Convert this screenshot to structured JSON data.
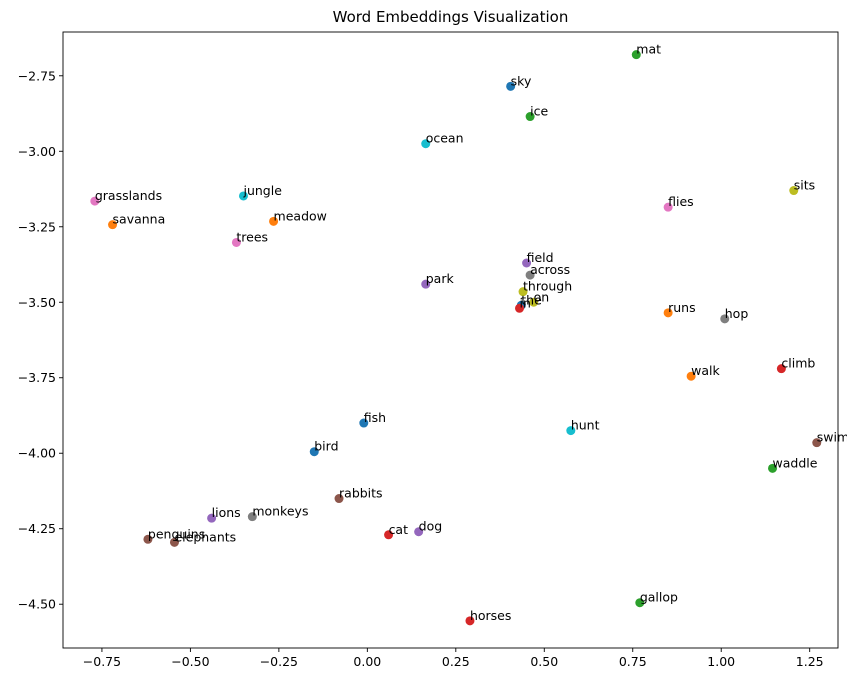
{
  "chart_data": {
    "type": "scatter",
    "title": "Word Embeddings Visualization",
    "xlabel": "",
    "ylabel": "",
    "xlim": [
      -0.86,
      1.33
    ],
    "ylim": [
      -4.645,
      -2.605
    ],
    "xticks": [
      -0.75,
      -0.5,
      -0.25,
      0.0,
      0.25,
      0.5,
      0.75,
      1.0,
      1.25
    ],
    "xtick_labels": [
      "−0.75",
      "−0.50",
      "−0.25",
      "0.00",
      "0.25",
      "0.50",
      "0.75",
      "1.00",
      "1.25"
    ],
    "yticks": [
      -2.75,
      -3.0,
      -3.25,
      -3.5,
      -3.75,
      -4.0,
      -4.25,
      -4.5
    ],
    "ytick_labels": [
      "−2.75",
      "−3.00",
      "−3.25",
      "−3.50",
      "−3.75",
      "−4.00",
      "−4.25",
      "−4.50"
    ],
    "grid": false,
    "points": [
      {
        "word": "mat",
        "x": 0.76,
        "y": -2.68,
        "color": "#2ca02c"
      },
      {
        "word": "sky",
        "x": 0.405,
        "y": -2.785,
        "color": "#1f77b4"
      },
      {
        "word": "ice",
        "x": 0.46,
        "y": -2.885,
        "color": "#2ca02c"
      },
      {
        "word": "ocean",
        "x": 0.165,
        "y": -2.975,
        "color": "#17becf"
      },
      {
        "word": "sits",
        "x": 1.205,
        "y": -3.13,
        "color": "#bcbd22"
      },
      {
        "word": "grasslands",
        "x": -0.77,
        "y": -3.165,
        "color": "#e377c2"
      },
      {
        "word": "jungle",
        "x": -0.35,
        "y": -3.148,
        "color": "#17becf"
      },
      {
        "word": "flies",
        "x": 0.85,
        "y": -3.185,
        "color": "#e377c2"
      },
      {
        "word": "savanna",
        "x": -0.72,
        "y": -3.243,
        "color": "#ff7f0e"
      },
      {
        "word": "meadow",
        "x": -0.265,
        "y": -3.232,
        "color": "#ff7f0e"
      },
      {
        "word": "trees",
        "x": -0.37,
        "y": -3.302,
        "color": "#e377c2"
      },
      {
        "word": "field",
        "x": 0.45,
        "y": -3.37,
        "color": "#9467bd"
      },
      {
        "word": "across",
        "x": 0.46,
        "y": -3.41,
        "color": "#7f7f7f"
      },
      {
        "word": "park",
        "x": 0.165,
        "y": -3.44,
        "color": "#9467bd"
      },
      {
        "word": "through",
        "x": 0.44,
        "y": -3.465,
        "color": "#bcbd22"
      },
      {
        "word": "on",
        "x": 0.47,
        "y": -3.5,
        "color": "#bcbd22"
      },
      {
        "word": "the",
        "x": 0.435,
        "y": -3.51,
        "color": "#1f77b4"
      },
      {
        "word": "in",
        "x": 0.43,
        "y": -3.52,
        "color": "#d62728"
      },
      {
        "word": "runs",
        "x": 0.85,
        "y": -3.535,
        "color": "#ff7f0e"
      },
      {
        "word": "hop",
        "x": 1.01,
        "y": -3.555,
        "color": "#7f7f7f"
      },
      {
        "word": "climb",
        "x": 1.17,
        "y": -3.72,
        "color": "#d62728"
      },
      {
        "word": "walk",
        "x": 0.915,
        "y": -3.745,
        "color": "#ff7f0e"
      },
      {
        "word": "fish",
        "x": -0.01,
        "y": -3.9,
        "color": "#1f77b4"
      },
      {
        "word": "hunt",
        "x": 0.575,
        "y": -3.925,
        "color": "#17becf"
      },
      {
        "word": "swim",
        "x": 1.27,
        "y": -3.965,
        "color": "#8c564b"
      },
      {
        "word": "bird",
        "x": -0.15,
        "y": -3.995,
        "color": "#1f77b4"
      },
      {
        "word": "waddle",
        "x": 1.145,
        "y": -4.05,
        "color": "#2ca02c"
      },
      {
        "word": "rabbits",
        "x": -0.08,
        "y": -4.15,
        "color": "#8c564b"
      },
      {
        "word": "lions",
        "x": -0.44,
        "y": -4.215,
        "color": "#9467bd"
      },
      {
        "word": "monkeys",
        "x": -0.325,
        "y": -4.21,
        "color": "#7f7f7f"
      },
      {
        "word": "cat",
        "x": 0.06,
        "y": -4.27,
        "color": "#d62728"
      },
      {
        "word": "dog",
        "x": 0.145,
        "y": -4.26,
        "color": "#9467bd"
      },
      {
        "word": "penguins",
        "x": -0.62,
        "y": -4.285,
        "color": "#8c564b"
      },
      {
        "word": "elephants",
        "x": -0.545,
        "y": -4.295,
        "color": "#8c564b"
      },
      {
        "word": "gallop",
        "x": 0.77,
        "y": -4.495,
        "color": "#2ca02c"
      },
      {
        "word": "horses",
        "x": 0.29,
        "y": -4.555,
        "color": "#d62728"
      }
    ]
  }
}
